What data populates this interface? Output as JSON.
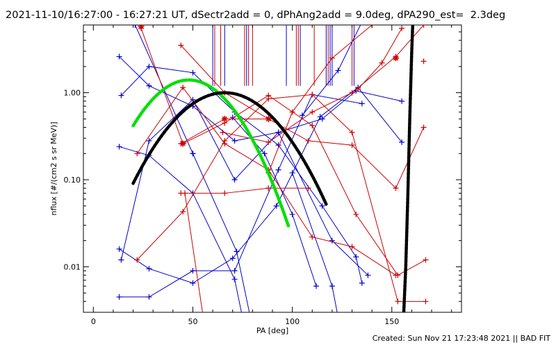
{
  "header": {
    "title": "2021-11-10/16:27:00 - 16:27:21 UT, dSectr2add = 0, dPhAng2add = 9.0deg, dPA290_est=  2.3deg"
  },
  "footer": {
    "text": "Created: Sun Nov 21 17:23:48 2021 || BAD FIT"
  },
  "chart_data": {
    "type": "line",
    "xlabel": "PA [deg]",
    "ylabel": "nflux [#/(cm2 s sr MeV)]",
    "xlim": [
      -5,
      185
    ],
    "ylim": [
      0.003,
      6
    ],
    "yscale": "log",
    "grid": false,
    "x_ticks": [
      {
        "value": 0,
        "label": "0"
      },
      {
        "value": 50,
        "label": "50"
      },
      {
        "value": 100,
        "label": "100"
      },
      {
        "value": 150,
        "label": "150"
      }
    ],
    "y_ticks": [
      {
        "value": 0.01,
        "label": "0.01"
      },
      {
        "value": 0.1,
        "label": "0.10"
      },
      {
        "value": 1.0,
        "label": "1.00"
      }
    ],
    "colors": {
      "blue": "#0000cc",
      "red": "#cc0000",
      "green": "#00e000",
      "black": "#000000"
    },
    "series": [
      {
        "color": "blue",
        "points": [
          [
            13,
            2.6
          ],
          [
            28,
            1.2
          ],
          [
            50,
            0.7
          ],
          [
            71,
            0.28
          ],
          [
            93,
            0.35
          ],
          [
            115,
            0.5
          ],
          [
            132,
            1.05
          ],
          [
            155,
            0.8
          ]
        ]
      },
      {
        "color": "blue",
        "points": [
          [
            14,
            0.93
          ],
          [
            28,
            2.0
          ],
          [
            50,
            1.7
          ],
          [
            71,
            0.6
          ],
          [
            93,
            0.25
          ],
          [
            115,
            0.05
          ],
          [
            132,
            0.013
          ],
          [
            135,
            0.0065
          ]
        ]
      },
      {
        "color": "blue",
        "points": [
          [
            13,
            0.24
          ],
          [
            28,
            0.19
          ],
          [
            50,
            0.07
          ],
          [
            71,
            0.0072
          ],
          [
            76,
            0.002
          ]
        ]
      },
      {
        "color": "blue",
        "points": [
          [
            13,
            0.016
          ],
          [
            28,
            0.0095
          ],
          [
            50,
            0.0065
          ],
          [
            70,
            0.0125
          ],
          [
            92,
            0.05
          ],
          [
            114,
            0.53
          ],
          [
            133,
            1.15
          ],
          [
            155,
            0.27
          ]
        ]
      },
      {
        "color": "blue",
        "points": [
          [
            13,
            0.0045
          ],
          [
            28,
            0.0045
          ],
          [
            50,
            0.009
          ],
          [
            71,
            0.009
          ],
          [
            93,
            0.13
          ],
          [
            110,
            0.95
          ],
          [
            135,
            0.75
          ]
        ]
      },
      {
        "color": "blue",
        "points": [
          [
            14,
            0.012
          ],
          [
            28,
            0.28
          ],
          [
            50,
            0.83
          ],
          [
            71,
            0.1
          ],
          [
            93,
            0.35
          ],
          [
            120,
            0.02
          ],
          [
            138,
            0.008
          ]
        ]
      },
      {
        "color": "blue",
        "points": [
          [
            50,
            0.2
          ],
          [
            72,
            0.015
          ],
          [
            80,
            0.002
          ]
        ]
      },
      {
        "color": "blue",
        "points": [
          [
            21,
            6
          ],
          [
            50,
            0.2
          ]
        ]
      },
      {
        "color": "blue",
        "points": [
          [
            70,
            0.52
          ],
          [
            86,
            0.2
          ],
          [
            100,
            0.04
          ],
          [
            112,
            0.006
          ]
        ]
      },
      {
        "color": "blue",
        "points": [
          [
            100,
            0.12
          ],
          [
            120,
            0.006
          ],
          [
            124,
            0.002
          ]
        ]
      },
      {
        "color": "blue",
        "points": [
          [
            105,
            0.55
          ],
          [
            123,
            1.8
          ],
          [
            135,
            6.5
          ]
        ]
      },
      {
        "color": "red",
        "points": [
          [
            22,
            0.012
          ],
          [
            45,
            0.043
          ],
          [
            66,
            0.28
          ],
          [
            88,
            0.85
          ],
          [
            110,
            0.95
          ],
          [
            130,
            0.35
          ],
          [
            153,
            0.004
          ],
          [
            167,
            0.004
          ]
        ]
      },
      {
        "color": "red",
        "points": [
          [
            24,
            5.5
          ],
          [
            45,
            0.26
          ],
          [
            66,
            0.45
          ],
          [
            88,
            0.93
          ],
          [
            110,
            0.42
          ],
          [
            132,
            0.04
          ],
          [
            153,
            0.008
          ],
          [
            167,
            0.012
          ]
        ]
      },
      {
        "color": "red",
        "points": [
          [
            22,
            0.2
          ],
          [
            45,
            1.15
          ],
          [
            66,
            0.26
          ],
          [
            88,
            0.13
          ],
          [
            110,
            0.022
          ],
          [
            130,
            0.017
          ],
          [
            152,
            0.008
          ]
        ]
      },
      {
        "color": "red",
        "points": [
          [
            44,
            3.5
          ],
          [
            66,
            1.0
          ],
          [
            88,
            0.5
          ],
          [
            108,
            0.28
          ],
          [
            130,
            0.25
          ],
          [
            152,
            0.08
          ],
          [
            166,
            0.4
          ]
        ]
      },
      {
        "color": "red",
        "points": [
          [
            44,
            0.07
          ],
          [
            66,
            0.07
          ],
          [
            88,
            0.08
          ],
          [
            108,
            0.08
          ]
        ]
      },
      {
        "color": "red",
        "points": [
          [
            44,
            0.26
          ],
          [
            66,
            0.5
          ],
          [
            88,
            0.5
          ]
        ]
      },
      {
        "color": "red",
        "points": [
          [
            65,
            0.35
          ],
          [
            88,
            0.27
          ],
          [
            110,
            0.6
          ],
          [
            130,
            1.0
          ],
          [
            152,
            2.6
          ],
          [
            166,
            6
          ]
        ]
      },
      {
        "color": "red",
        "points": [
          [
            46,
            0.07
          ],
          [
            56,
            0.002
          ]
        ]
      },
      {
        "color": "red",
        "points": [
          [
            88,
            0.12
          ],
          [
            100,
            0.6
          ],
          [
            120,
            2.5
          ],
          [
            140,
            6
          ]
        ]
      },
      {
        "color": "red",
        "points": [
          [
            133,
            1.1
          ],
          [
            145,
            2.2
          ],
          [
            155,
            5.5
          ]
        ]
      },
      {
        "color": "red",
        "points": [
          [
            166,
            2.3
          ]
        ]
      }
    ],
    "marker_stars": [
      {
        "color": "red",
        "x": 24,
        "y": 5.8
      },
      {
        "color": "red",
        "x": 45,
        "y": 0.26
      },
      {
        "color": "red",
        "x": 66,
        "y": 0.5
      },
      {
        "color": "red",
        "x": 88,
        "y": 0.5
      },
      {
        "color": "red",
        "x": 152,
        "y": 2.5
      }
    ],
    "top_lines": [
      {
        "color": "blue",
        "x": 60
      },
      {
        "color": "red",
        "x": 61
      },
      {
        "color": "red",
        "x": 64
      },
      {
        "color": "blue",
        "x": 66
      },
      {
        "color": "red",
        "x": 76
      },
      {
        "color": "blue",
        "x": 77
      },
      {
        "color": "red",
        "x": 78
      },
      {
        "color": "red",
        "x": 80
      },
      {
        "color": "blue",
        "x": 97
      },
      {
        "color": "red",
        "x": 102
      },
      {
        "color": "red",
        "x": 103
      },
      {
        "color": "blue",
        "x": 104
      },
      {
        "color": "red",
        "x": 111
      },
      {
        "color": "blue",
        "x": 117
      },
      {
        "color": "red",
        "x": 118
      },
      {
        "color": "blue",
        "x": 119
      },
      {
        "color": "blue",
        "x": 120
      },
      {
        "color": "red",
        "x": 130
      },
      {
        "color": "blue",
        "x": 131
      }
    ],
    "fit_curves": [
      {
        "color": "green",
        "center": 48,
        "peak": 1.4,
        "sigma": 18,
        "xmin": 20,
        "xmax": 98
      },
      {
        "color": "black",
        "center": 66,
        "peak": 1.0,
        "sigma": 21,
        "xmin": 20,
        "xmax": 117
      }
    ],
    "black_right_curve": [
      [
        156,
        0.003
      ],
      [
        157,
        0.01
      ],
      [
        158,
        0.06
      ],
      [
        159,
        0.5
      ],
      [
        160,
        3
      ],
      [
        160.5,
        6
      ]
    ]
  }
}
